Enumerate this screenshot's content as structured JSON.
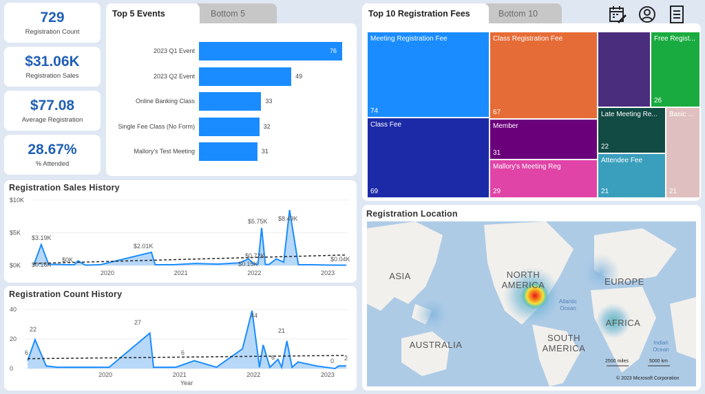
{
  "kpis": [
    {
      "value": "729",
      "label": "Registration Count"
    },
    {
      "value": "$31.06K",
      "label": "Registration Sales"
    },
    {
      "value": "$77.08",
      "label": "Average Registration"
    },
    {
      "value": "28.67%",
      "label": "% Attended"
    }
  ],
  "events_tabs": {
    "active": "Top 5 Events",
    "inactive": "Bottom 5"
  },
  "fees_tabs": {
    "active": "Top 10 Registration Fees",
    "inactive": "Bottom 10"
  },
  "header_icons": [
    "calendar-edit-icon",
    "user-circle-icon",
    "document-list-icon"
  ],
  "top_events_chart": {
    "type": "bar",
    "categories": [
      "2023 Q1 Event",
      "2023 Q2 Event",
      "Online Banking Class",
      "Single Fee Class (No Form)",
      "Mallory's Test Meeting"
    ],
    "values": [
      76,
      49,
      33,
      32,
      31
    ],
    "max": 76,
    "color": "#1a8cff"
  },
  "fees_treemap": {
    "type": "treemap",
    "items": [
      {
        "name": "Meeting Registration Fee",
        "value": "74",
        "color": "#1a8cff"
      },
      {
        "name": "Class Fee",
        "value": "69",
        "color": "#1c2aa8"
      },
      {
        "name": "Class Registration Fee",
        "value": "67",
        "color": "#e66c37"
      },
      {
        "name": "Member",
        "value": "31",
        "color": "#6b007b"
      },
      {
        "name": "Mallory's Meeting Reg",
        "value": "29",
        "color": "#e044a7"
      },
      {
        "name": "",
        "value": "",
        "color": "#4b2d7e"
      },
      {
        "name": "Free Regist...",
        "value": "26",
        "color": "#1aab40"
      },
      {
        "name": "Late Meeting Re...",
        "value": "22",
        "color": "#124a44"
      },
      {
        "name": "Attendee Fee",
        "value": "21",
        "color": "#3a9ebd"
      },
      {
        "name": "Basic ...",
        "value": "21",
        "color": "#dfbfbf"
      }
    ]
  },
  "sales_history": {
    "title": "Registration Sales History",
    "chart_data": {
      "type": "area",
      "x": [
        2019.0,
        2019.1,
        2019.2,
        2019.3,
        2019.45,
        2019.55,
        2019.6,
        2019.7,
        2019.9,
        2020.6,
        2020.65,
        2020.9,
        2021.2,
        2021.5,
        2021.8,
        2021.92,
        2022.0,
        2022.05,
        2022.1,
        2022.15,
        2022.2,
        2022.3,
        2022.4,
        2022.48,
        2022.6,
        2022.8,
        2023.0,
        2023.2,
        2023.25
      ],
      "y": [
        0.1,
        3.19,
        0.16,
        0.16,
        0.1,
        0.1,
        0.7,
        0.05,
        0.1,
        2.01,
        0.1,
        0.1,
        0.3,
        0.2,
        0.4,
        1.0,
        0.2,
        0.2,
        5.75,
        0.15,
        0.15,
        1.0,
        0.5,
        8.49,
        0.1,
        0.1,
        0.05,
        0.04,
        0.04
      ],
      "trend": [
        0.3,
        1.6
      ],
      "ylim": [
        0,
        10
      ],
      "yticks": [
        "$0K",
        "$5K",
        "$10K"
      ],
      "xticks": [
        "2020",
        "2021",
        "2022",
        "2023"
      ],
      "labels": [
        "$3.19K",
        "$0.16K",
        "$0K",
        "$2.01K",
        "$5.75K",
        "$0.15K",
        "$0.72K",
        "$8.49K",
        "$0.04K"
      ]
    }
  },
  "count_history": {
    "title": "Registration Count History",
    "chart_data": {
      "type": "area",
      "x": [
        2018.95,
        2019.05,
        2019.2,
        2019.35,
        2019.5,
        2019.75,
        2020.05,
        2020.6,
        2020.65,
        2020.95,
        2021.2,
        2021.5,
        2021.85,
        2021.98,
        2022.08,
        2022.13,
        2022.22,
        2022.33,
        2022.38,
        2022.45,
        2022.52,
        2022.6,
        2022.85,
        2023.1,
        2023.15,
        2023.25
      ],
      "y": [
        6,
        22,
        2,
        1,
        1,
        1,
        1,
        27,
        1,
        1,
        6,
        1,
        15,
        44,
        1,
        18,
        1,
        7,
        1,
        21,
        1,
        5,
        2,
        0,
        2,
        2
      ],
      "trend": [
        7.5,
        10
      ],
      "ylim": [
        0,
        45
      ],
      "yticks": [
        "0",
        "20",
        "40"
      ],
      "xticks": [
        "2020",
        "2021",
        "2022",
        "2023"
      ],
      "xlabel": "Year",
      "labels": [
        "6",
        "22",
        "27",
        "6",
        "44",
        "6",
        "21",
        "0",
        "2"
      ]
    }
  },
  "map": {
    "title": "Registration Location",
    "continents": [
      "ASIA",
      "NORTH AMERICA",
      "EUROPE",
      "AFRICA",
      "AUSTRALIA",
      "SOUTH AMERICA"
    ],
    "oceans": [
      "Atlantic Ocean",
      "Indian Ocean"
    ],
    "scale": [
      "2500 miles",
      "5000 km"
    ],
    "copyright": "© 2023 Microsoft Corporation"
  }
}
